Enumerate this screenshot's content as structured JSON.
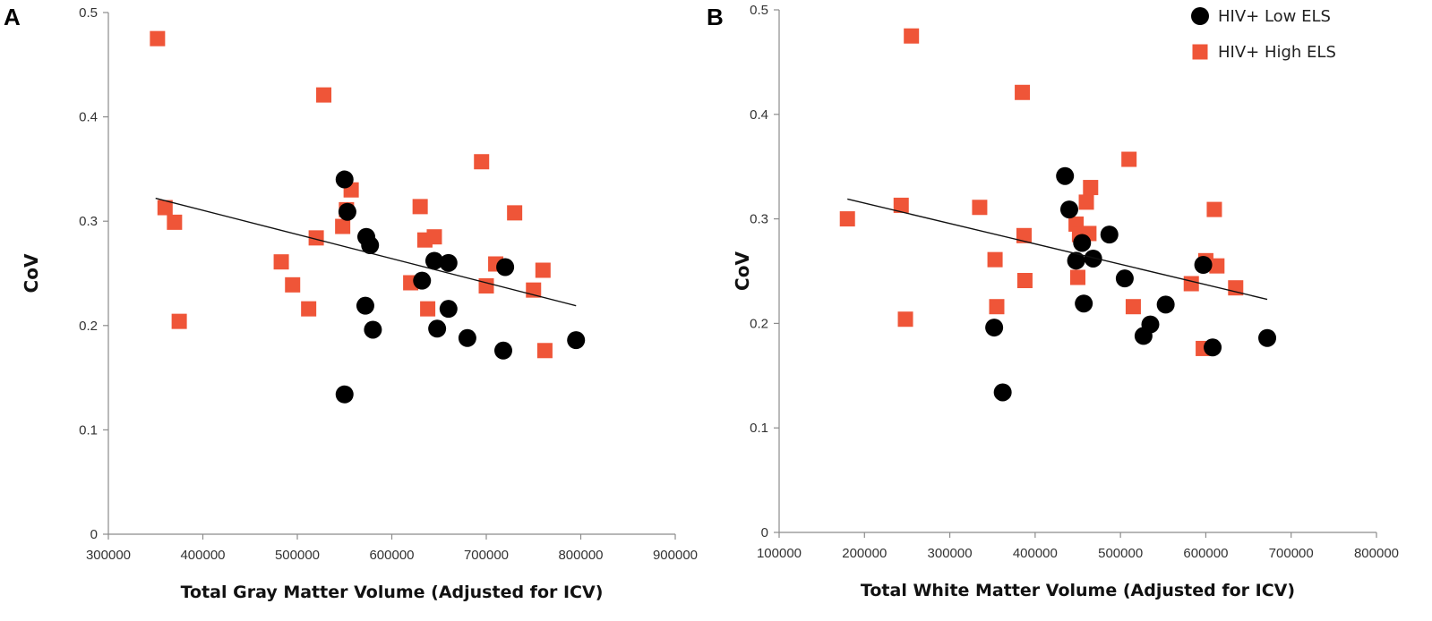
{
  "chart_data": [
    {
      "type": "scatter",
      "panel": "A",
      "xlabel": "Total Gray Matter Volume (Adjusted for ICV)",
      "ylabel": "CoV",
      "xlim": [
        300000,
        900000
      ],
      "ylim": [
        0,
        0.5
      ],
      "xticks": [
        "300000",
        "400000",
        "500000",
        "600000",
        "700000",
        "800000",
        "900000"
      ],
      "yticks": [
        "0",
        "0.1",
        "0.2",
        "0.3",
        "0.4",
        "0.5"
      ],
      "trendline": {
        "x": [
          350000,
          795000
        ],
        "y": [
          0.322,
          0.219
        ]
      },
      "series": [
        {
          "name": "HIV+ Low ELS",
          "marker": "circle",
          "color": "#000000",
          "x": [
            550000,
            553000,
            573000,
            577000,
            572000,
            580000,
            550000,
            632000,
            645000,
            660000,
            660000,
            648000,
            680000,
            720000,
            718000,
            795000
          ],
          "y": [
            0.34,
            0.309,
            0.285,
            0.277,
            0.219,
            0.196,
            0.134,
            0.243,
            0.262,
            0.26,
            0.216,
            0.197,
            0.188,
            0.256,
            0.176,
            0.186
          ]
        },
        {
          "name": "HIV+ High ELS",
          "marker": "square",
          "color": "#ef5538",
          "x": [
            352000,
            360000,
            370000,
            375000,
            483000,
            495000,
            512000,
            520000,
            528000,
            548000,
            552000,
            557000,
            620000,
            630000,
            635000,
            638000,
            645000,
            695000,
            700000,
            710000,
            730000,
            750000,
            760000,
            762000
          ],
          "y": [
            0.475,
            0.313,
            0.299,
            0.204,
            0.261,
            0.239,
            0.216,
            0.284,
            0.421,
            0.295,
            0.311,
            0.33,
            0.241,
            0.314,
            0.282,
            0.216,
            0.285,
            0.357,
            0.238,
            0.259,
            0.308,
            0.234,
            0.253,
            0.176
          ]
        }
      ]
    },
    {
      "type": "scatter",
      "panel": "B",
      "xlabel": "Total White Matter Volume (Adjusted for ICV)",
      "ylabel": "CoV",
      "xlim": [
        100000,
        800000
      ],
      "ylim": [
        0,
        0.5
      ],
      "xticks": [
        "100000",
        "200000",
        "300000",
        "400000",
        "500000",
        "600000",
        "700000",
        "800000"
      ],
      "yticks": [
        "0",
        "0.1",
        "0.2",
        "0.3",
        "0.4",
        "0.5"
      ],
      "trendline": {
        "x": [
          180000,
          672000
        ],
        "y": [
          0.319,
          0.223
        ]
      },
      "legend": {
        "position": "top-right",
        "entries": [
          "HIV+ Low ELS",
          "HIV+ High ELS"
        ]
      },
      "series": [
        {
          "name": "HIV+ Low ELS",
          "marker": "circle",
          "color": "#000000",
          "x": [
            435000,
            440000,
            455000,
            448000,
            468000,
            487000,
            505000,
            457000,
            553000,
            535000,
            527000,
            352000,
            362000,
            597000,
            608000,
            672000
          ],
          "y": [
            0.341,
            0.309,
            0.277,
            0.26,
            0.262,
            0.285,
            0.243,
            0.219,
            0.218,
            0.199,
            0.188,
            0.196,
            0.134,
            0.256,
            0.177,
            0.186
          ]
        },
        {
          "name": "HIV+ High ELS",
          "marker": "square",
          "color": "#ef5538",
          "x": [
            180000,
            243000,
            248000,
            255000,
            335000,
            353000,
            355000,
            385000,
            387000,
            388000,
            448000,
            450000,
            452000,
            460000,
            463000,
            465000,
            510000,
            515000,
            583000,
            597000,
            600000,
            610000,
            613000,
            635000
          ],
          "y": [
            0.3,
            0.313,
            0.204,
            0.475,
            0.311,
            0.261,
            0.216,
            0.421,
            0.284,
            0.241,
            0.295,
            0.244,
            0.285,
            0.316,
            0.286,
            0.33,
            0.357,
            0.216,
            0.238,
            0.176,
            0.26,
            0.309,
            0.255,
            0.234
          ]
        }
      ]
    }
  ]
}
